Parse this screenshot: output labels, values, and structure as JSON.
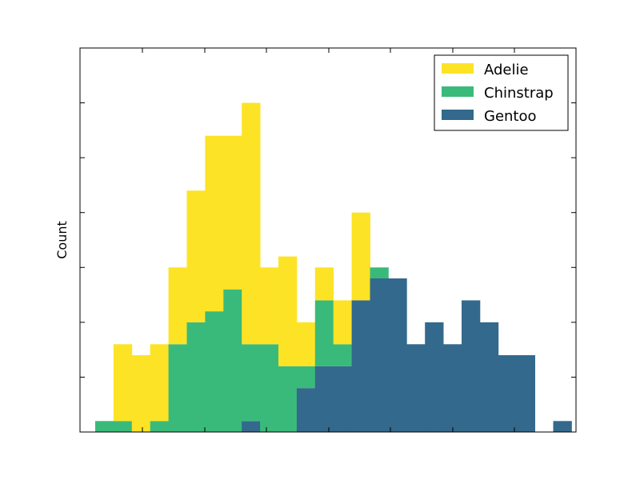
{
  "chart_data": {
    "type": "bar",
    "stacked": true,
    "title": "",
    "xlabel": "",
    "ylabel": "Count",
    "x_tick_labels_visible": false,
    "y_tick_labels_visible": false,
    "bins": 26,
    "ylim": [
      0,
      35
    ],
    "grid": false,
    "legend_position": "top-right",
    "series": [
      {
        "name": "Gentoo",
        "color": "#33698c",
        "values": [
          0,
          0,
          0,
          0,
          0,
          0,
          0,
          0,
          1,
          0,
          0,
          4,
          6,
          6,
          12,
          14,
          14,
          8,
          10,
          8,
          12,
          10,
          7,
          7,
          0,
          1
        ]
      },
      {
        "name": "Chinstrap",
        "color": "#3aba7a",
        "values": [
          1,
          1,
          0,
          1,
          8,
          10,
          11,
          13,
          7,
          8,
          6,
          2,
          6,
          2,
          0,
          1,
          0,
          0,
          0,
          0,
          0,
          0,
          0,
          0,
          0,
          0
        ]
      },
      {
        "name": "Adelie",
        "color": "#fde325",
        "values": [
          0,
          7,
          7,
          7,
          7,
          12,
          16,
          14,
          22,
          7,
          10,
          4,
          3,
          4,
          8,
          0,
          0,
          0,
          0,
          0,
          0,
          0,
          0,
          0,
          0,
          0
        ]
      }
    ]
  }
}
